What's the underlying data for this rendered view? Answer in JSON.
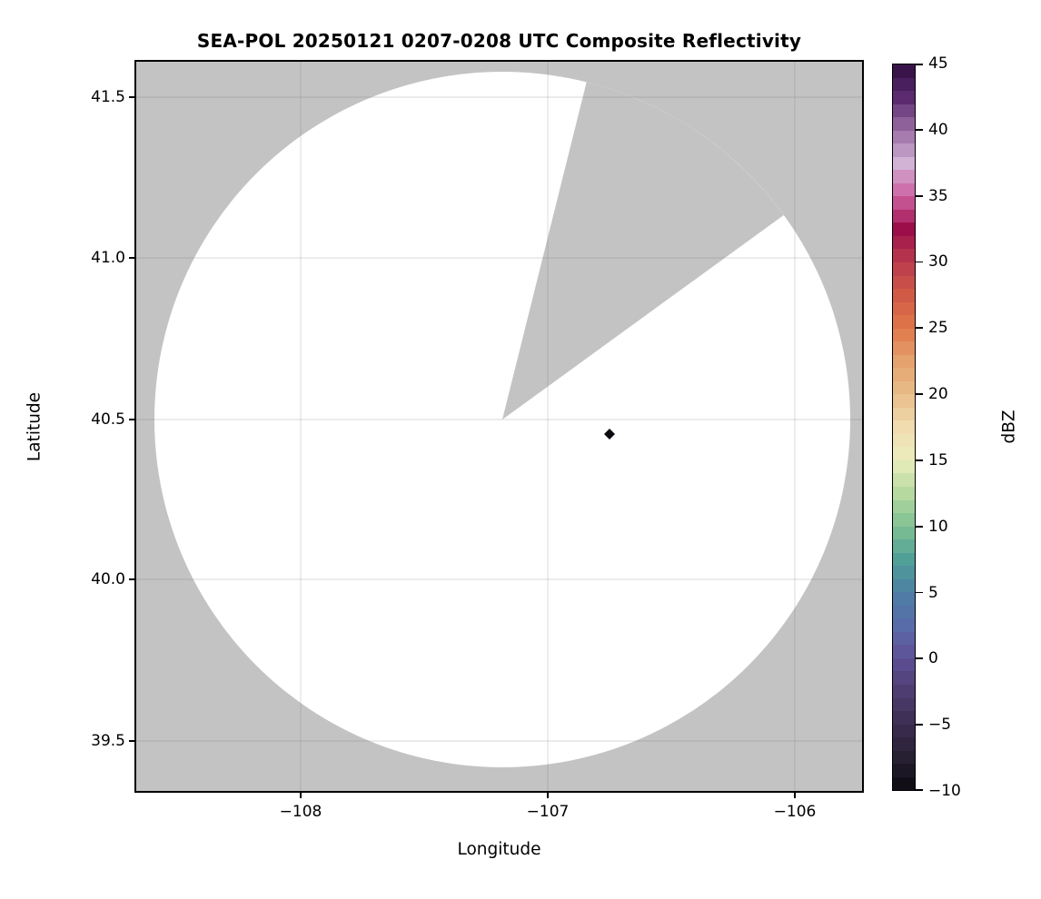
{
  "title": "SEA-POL 20250121 0207-0208 UTC Composite Reflectivity",
  "axes": {
    "xlabel": "Longitude",
    "ylabel": "Latitude",
    "x_ticks": [
      "−108",
      "−107",
      "−106"
    ],
    "y_ticks": [
      "41.5",
      "41.0",
      "40.5",
      "40.0",
      "39.5"
    ]
  },
  "colorbar": {
    "label": "dBZ",
    "ticks": [
      "45",
      "40",
      "35",
      "30",
      "25",
      "20",
      "15",
      "10",
      "5",
      "0",
      "−5",
      "−10"
    ],
    "vmin": -10,
    "vmax": 45,
    "band_step_dbz": 1,
    "anchors": [
      {
        "dbz": 45,
        "color": "#2f0e41"
      },
      {
        "dbz": 42.5,
        "color": "#5b2a6f"
      },
      {
        "dbz": 40,
        "color": "#9b6fa6"
      },
      {
        "dbz": 37.5,
        "color": "#d2b2d5"
      },
      {
        "dbz": 35,
        "color": "#cd60a0"
      },
      {
        "dbz": 32.5,
        "color": "#9c0e4a"
      },
      {
        "dbz": 30,
        "color": "#bb3b4e"
      },
      {
        "dbz": 27.5,
        "color": "#d15a46"
      },
      {
        "dbz": 25,
        "color": "#e0784a"
      },
      {
        "dbz": 22.5,
        "color": "#e5a26e"
      },
      {
        "dbz": 20,
        "color": "#e8bd88"
      },
      {
        "dbz": 17.5,
        "color": "#f0dcae"
      },
      {
        "dbz": 15,
        "color": "#ebeebd"
      },
      {
        "dbz": 12.5,
        "color": "#b6d9a0"
      },
      {
        "dbz": 10,
        "color": "#7fc093"
      },
      {
        "dbz": 7.5,
        "color": "#51a098"
      },
      {
        "dbz": 5,
        "color": "#4d7fa5"
      },
      {
        "dbz": 2.5,
        "color": "#596caa"
      },
      {
        "dbz": 0,
        "color": "#5e5096"
      },
      {
        "dbz": -2.5,
        "color": "#4d3d71"
      },
      {
        "dbz": -5,
        "color": "#3b2d50"
      },
      {
        "dbz": -7.5,
        "color": "#272033"
      },
      {
        "dbz": -10,
        "color": "#0c0a11"
      }
    ]
  },
  "colors": {
    "background_gray": "#c3c3c3",
    "coverage_white": "#ffffff",
    "gridline": "rgba(110,110,110,0.18)",
    "echo": "#0d0b12",
    "axis": "#000000"
  },
  "chart_data": {
    "type": "heatmap",
    "subtype": "radar-composite-reflectivity-ppi",
    "title": "SEA-POL 20250121 0207-0208 UTC Composite Reflectivity",
    "xlabel": "Longitude",
    "ylabel": "Latitude",
    "xlim": [
      -108.66,
      -105.72
    ],
    "ylim": [
      39.34,
      41.61
    ],
    "x_ticks": [
      -108,
      -107,
      -106
    ],
    "y_ticks": [
      41.5,
      41.0,
      40.5,
      40.0,
      39.5
    ],
    "grid": true,
    "colorbar_label": "dBZ",
    "colorbar_range": [
      -10,
      45
    ],
    "colorbar_tick_step": 5,
    "radar": {
      "center_lon": -107.18,
      "center_lat": 40.49,
      "range_deg_lon": 1.41,
      "range_deg_lat": 1.08
    },
    "no_data_sector_azimuth_deg": [
      14,
      54
    ],
    "background_outside_coverage": "gray (no data)",
    "coverage_fill": "white (scanned area, no echo above threshold)",
    "echoes": [
      {
        "lon": -106.75,
        "lat": 40.45,
        "dbz_est": -9,
        "note": "small dark echo cluster"
      }
    ]
  }
}
